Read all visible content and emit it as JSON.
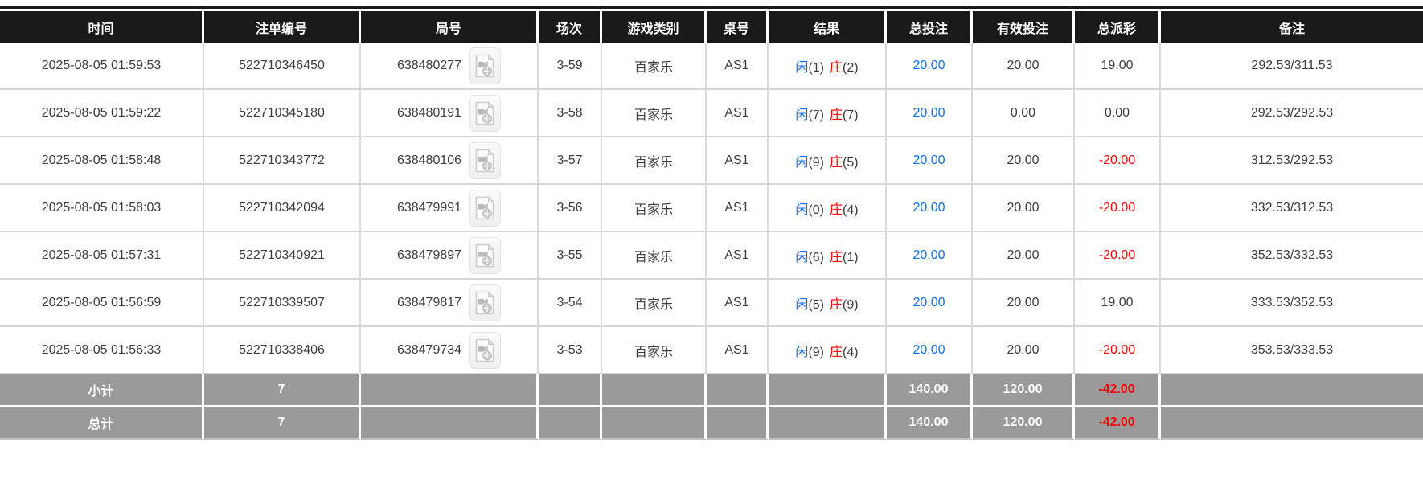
{
  "header": {
    "columns": [
      "时间",
      "注单编号",
      "局号",
      "场次",
      "游戏类别",
      "桌号",
      "结果",
      "总投注",
      "有效投注",
      "总派彩",
      "备注"
    ]
  },
  "icons": {
    "round_video": "video-file-icon"
  },
  "colors": {
    "header_bg": "#1a1a1a",
    "summary_bg": "#9a9a9a",
    "player_blue": "#0d6efd",
    "banker_red": "#ff0000",
    "bet_amount_blue": "#0d6efd",
    "negative_red": "#ff0000"
  },
  "rows": [
    {
      "time": "2025-08-05 01:59:53",
      "bet_no": "522710346450",
      "round_no": "638480277",
      "session": "3-59",
      "game": "百家乐",
      "table": "AS1",
      "result_player": "闲",
      "result_player_score": "(1)",
      "result_banker": "庄",
      "result_banker_score": "(2)",
      "total_bet": "20.00",
      "valid_bet": "20.00",
      "payout": "19.00",
      "remark": "292.53/311.53"
    },
    {
      "time": "2025-08-05 01:59:22",
      "bet_no": "522710345180",
      "round_no": "638480191",
      "session": "3-58",
      "game": "百家乐",
      "table": "AS1",
      "result_player": "闲",
      "result_player_score": "(7)",
      "result_banker": "庄",
      "result_banker_score": "(7)",
      "total_bet": "20.00",
      "valid_bet": "0.00",
      "payout": "0.00",
      "remark": "292.53/292.53"
    },
    {
      "time": "2025-08-05 01:58:48",
      "bet_no": "522710343772",
      "round_no": "638480106",
      "session": "3-57",
      "game": "百家乐",
      "table": "AS1",
      "result_player": "闲",
      "result_player_score": "(9)",
      "result_banker": "庄",
      "result_banker_score": "(5)",
      "total_bet": "20.00",
      "valid_bet": "20.00",
      "payout": "-20.00",
      "remark": "312.53/292.53"
    },
    {
      "time": "2025-08-05 01:58:03",
      "bet_no": "522710342094",
      "round_no": "638479991",
      "session": "3-56",
      "game": "百家乐",
      "table": "AS1",
      "result_player": "闲",
      "result_player_score": "(0)",
      "result_banker": "庄",
      "result_banker_score": "(4)",
      "total_bet": "20.00",
      "valid_bet": "20.00",
      "payout": "-20.00",
      "remark": "332.53/312.53"
    },
    {
      "time": "2025-08-05 01:57:31",
      "bet_no": "522710340921",
      "round_no": "638479897",
      "session": "3-55",
      "game": "百家乐",
      "table": "AS1",
      "result_player": "闲",
      "result_player_score": "(6)",
      "result_banker": "庄",
      "result_banker_score": "(1)",
      "total_bet": "20.00",
      "valid_bet": "20.00",
      "payout": "-20.00",
      "remark": "352.53/332.53"
    },
    {
      "time": "2025-08-05 01:56:59",
      "bet_no": "522710339507",
      "round_no": "638479817",
      "session": "3-54",
      "game": "百家乐",
      "table": "AS1",
      "result_player": "闲",
      "result_player_score": "(5)",
      "result_banker": "庄",
      "result_banker_score": "(9)",
      "total_bet": "20.00",
      "valid_bet": "20.00",
      "payout": "19.00",
      "remark": "333.53/352.53"
    },
    {
      "time": "2025-08-05 01:56:33",
      "bet_no": "522710338406",
      "round_no": "638479734",
      "session": "3-53",
      "game": "百家乐",
      "table": "AS1",
      "result_player": "闲",
      "result_player_score": "(9)",
      "result_banker": "庄",
      "result_banker_score": "(4)",
      "total_bet": "20.00",
      "valid_bet": "20.00",
      "payout": "-20.00",
      "remark": "353.53/333.53"
    }
  ],
  "footer_rows": [
    {
      "label": "小计",
      "count": "7",
      "total_bet": "140.00",
      "valid_bet": "120.00",
      "payout": "-42.00"
    },
    {
      "label": "总计",
      "count": "7",
      "total_bet": "140.00",
      "valid_bet": "120.00",
      "payout": "-42.00"
    }
  ]
}
